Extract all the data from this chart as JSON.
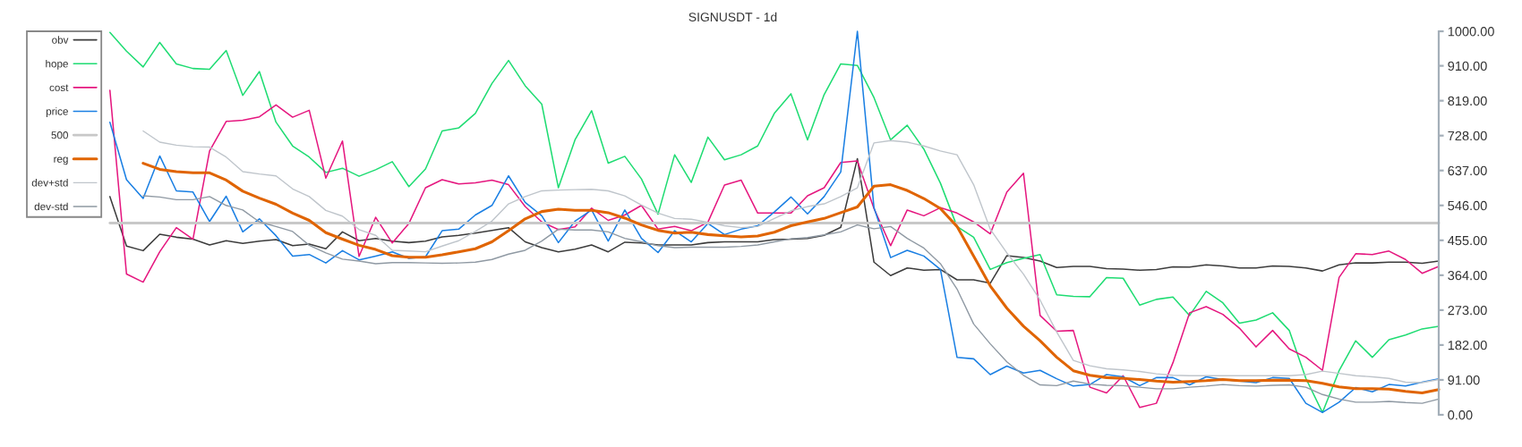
{
  "chart_data": {
    "type": "line",
    "title": "SIGNUSDT - 1d",
    "categories": [
      null,
      null,
      null,
      null,
      null,
      null,
      null,
      null,
      null,
      null,
      null,
      null,
      null,
      null,
      null,
      null,
      null,
      null,
      null,
      null,
      null,
      null,
      null,
      null,
      null,
      null,
      null,
      null,
      null,
      null,
      null,
      null,
      null,
      null,
      null,
      null,
      null,
      null,
      null,
      null,
      null,
      null,
      null,
      null,
      null,
      null,
      null,
      null,
      null,
      null,
      null,
      null,
      null,
      null,
      null,
      null,
      null,
      null,
      null,
      null,
      null,
      null,
      null,
      null,
      null,
      null,
      null,
      null,
      null,
      null,
      null,
      null,
      null,
      null,
      null,
      null,
      null,
      null,
      null,
      null,
      null,
      null,
      null,
      null,
      null,
      null
    ],
    "series": [
      {
        "name": "obv",
        "color": "#3c3c3c",
        "values": [
          null,
          null,
          null,
          null,
          null,
          569,
          440,
          428,
          471,
          463,
          458,
          443,
          454,
          447,
          453,
          457,
          441,
          445,
          433,
          477,
          454,
          460,
          453,
          449,
          453,
          464,
          468,
          474,
          481,
          488,
          451,
          436,
          425,
          432,
          443,
          425,
          450,
          448,
          443,
          443,
          443,
          449,
          451,
          451,
          451,
          457,
          458,
          460,
          468,
          489,
          668,
          398,
          363,
          383,
          377,
          379,
          352,
          352,
          343,
          415,
          410,
          401,
          384,
          387,
          387,
          381,
          380,
          377,
          379,
          386,
          385,
          391,
          388,
          383,
          383,
          388,
          387,
          383,
          375,
          391,
          396,
          396,
          398,
          398,
          395,
          401
        ]
      },
      {
        "name": "hope",
        "color": "#1edc72",
        "values": [
          null,
          null,
          null,
          null,
          null,
          997,
          948,
          907,
          971,
          915,
          903,
          901,
          950,
          833,
          895,
          763,
          701,
          672,
          632,
          643,
          622,
          639,
          660,
          595,
          641,
          740,
          748,
          786,
          864,
          924,
          858,
          810,
          592,
          717,
          793,
          656,
          674,
          615,
          523,
          678,
          606,
          724,
          665,
          678,
          701,
          786,
          837,
          717,
          835,
          915,
          911,
          827,
          717,
          755,
          693,
          604,
          491,
          463,
          379,
          397,
          408,
          418,
          313,
          309,
          308,
          358,
          356,
          286,
          301,
          307,
          259,
          322,
          292,
          239,
          247,
          266,
          220,
          95,
          6,
          115,
          193,
          150,
          196,
          208,
          224,
          231
        ]
      },
      {
        "name": "cost",
        "color": "#e5177f",
        "values": [
          null,
          null,
          null,
          null,
          null,
          846,
          367,
          346,
          425,
          488,
          458,
          688,
          765,
          768,
          777,
          808,
          776,
          794,
          617,
          714,
          413,
          515,
          448,
          499,
          592,
          613,
          602,
          605,
          612,
          600,
          543,
          503,
          483,
          490,
          539,
          507,
          521,
          546,
          484,
          491,
          480,
          502,
          599,
          612,
          526,
          526,
          526,
          571,
          592,
          658,
          662,
          538,
          441,
          534,
          519,
          540,
          526,
          503,
          472,
          581,
          630,
          259,
          218,
          220,
          72,
          57,
          102,
          19,
          30,
          136,
          266,
          282,
          262,
          226,
          177,
          220,
          172,
          150,
          116,
          358,
          420,
          418,
          427,
          405,
          369,
          387
        ]
      },
      {
        "name": "price",
        "color": "#1a7fe3",
        "values": [
          null,
          null,
          null,
          null,
          null,
          763,
          613,
          564,
          675,
          584,
          581,
          504,
          570,
          477,
          511,
          467,
          414,
          418,
          396,
          428,
          404,
          414,
          425,
          408,
          412,
          480,
          484,
          521,
          546,
          623,
          554,
          519,
          449,
          505,
          534,
          453,
          534,
          460,
          423,
          480,
          451,
          499,
          470,
          484,
          493,
          529,
          568,
          524,
          569,
          633,
          1000,
          540,
          410,
          429,
          414,
          379,
          150,
          146,
          105,
          127,
          109,
          116,
          94,
          75,
          79,
          105,
          99,
          76,
          97,
          97,
          78,
          99,
          92,
          88,
          84,
          97,
          95,
          30,
          6,
          33,
          71,
          60,
          79,
          75,
          85,
          94
        ]
      },
      {
        "name": "500",
        "color": "#c8c8c8",
        "values": [
          null,
          null,
          null,
          null,
          null,
          500,
          500,
          500,
          500,
          500,
          500,
          500,
          500,
          500,
          500,
          500,
          500,
          500,
          500,
          500,
          500,
          500,
          500,
          500,
          500,
          500,
          500,
          500,
          500,
          500,
          500,
          500,
          500,
          500,
          500,
          500,
          500,
          500,
          500,
          500,
          500,
          500,
          500,
          500,
          500,
          500,
          500,
          500,
          500,
          500,
          500,
          500,
          500,
          500,
          500,
          500,
          500,
          500,
          500,
          500,
          500,
          500,
          500,
          500,
          500,
          500,
          500,
          500,
          500,
          500,
          500,
          500,
          500,
          500,
          500,
          500,
          500,
          500,
          500,
          500,
          500,
          500,
          500,
          500,
          500,
          500
        ]
      },
      {
        "name": "reg",
        "color": "#e06400",
        "values": [
          null,
          null,
          null,
          null,
          null,
          null,
          null,
          656,
          640,
          634,
          631,
          631,
          612,
          583,
          565,
          549,
          526,
          507,
          475,
          458,
          442,
          431,
          415,
          411,
          411,
          417,
          425,
          433,
          451,
          480,
          511,
          530,
          536,
          533,
          533,
          527,
          513,
          495,
          481,
          474,
          476,
          470,
          467,
          464,
          466,
          476,
          493,
          503,
          512,
          527,
          542,
          596,
          600,
          585,
          564,
          538,
          491,
          414,
          336,
          278,
          231,
          193,
          150,
          115,
          103,
          97,
          95,
          92,
          88,
          85,
          87,
          89,
          92,
          89,
          89,
          90,
          90,
          89,
          82,
          73,
          68,
          68,
          67,
          61,
          57,
          66
        ]
      },
      {
        "name": "dev+std",
        "color": "#bfc5cb",
        "values": [
          null,
          null,
          null,
          null,
          null,
          null,
          null,
          740,
          711,
          703,
          699,
          698,
          672,
          634,
          628,
          623,
          589,
          569,
          533,
          518,
          483,
          468,
          429,
          427,
          425,
          440,
          454,
          478,
          505,
          550,
          569,
          584,
          586,
          587,
          588,
          584,
          571,
          547,
          526,
          512,
          510,
          502,
          493,
          488,
          491,
          512,
          532,
          543,
          550,
          569,
          592,
          709,
          715,
          711,
          701,
          688,
          678,
          600,
          484,
          422,
          367,
          299,
          216,
          142,
          128,
          120,
          117,
          113,
          107,
          103,
          102,
          102,
          102,
          102,
          102,
          102,
          102,
          105,
          114,
          108,
          102,
          99,
          95,
          85,
          84,
          92
        ]
      },
      {
        "name": "dev-std",
        "color": "#8f99a3",
        "values": [
          null,
          null,
          null,
          null,
          null,
          null,
          null,
          571,
          568,
          561,
          561,
          569,
          546,
          534,
          503,
          491,
          478,
          442,
          422,
          406,
          401,
          394,
          397,
          397,
          396,
          395,
          396,
          398,
          405,
          419,
          429,
          453,
          484,
          482,
          482,
          477,
          460,
          451,
          441,
          436,
          437,
          437,
          437,
          439,
          443,
          451,
          459,
          462,
          469,
          477,
          495,
          485,
          491,
          460,
          435,
          394,
          328,
          237,
          185,
          138,
          103,
          78,
          76,
          88,
          80,
          77,
          76,
          72,
          68,
          68,
          72,
          75,
          79,
          76,
          75,
          77,
          78,
          72,
          53,
          41,
          33,
          33,
          35,
          32,
          30,
          41
        ]
      }
    ],
    "ylim": [
      0,
      1000
    ],
    "yticks": [
      {
        "value": 0,
        "label": "0.00"
      },
      {
        "value": 91,
        "label": "91.00"
      },
      {
        "value": 182,
        "label": "182.00"
      },
      {
        "value": 273,
        "label": "273.00"
      },
      {
        "value": 364,
        "label": "364.00"
      },
      {
        "value": 455,
        "label": "455.00"
      },
      {
        "value": 546,
        "label": "546.00"
      },
      {
        "value": 637,
        "label": "637.00"
      },
      {
        "value": 728,
        "label": "728.00"
      },
      {
        "value": 819,
        "label": "819.00"
      },
      {
        "value": 910,
        "label": "910.00"
      },
      {
        "value": 1000,
        "label": "1000.00"
      }
    ],
    "tick_labels": "y",
    "legend": "top left"
  }
}
